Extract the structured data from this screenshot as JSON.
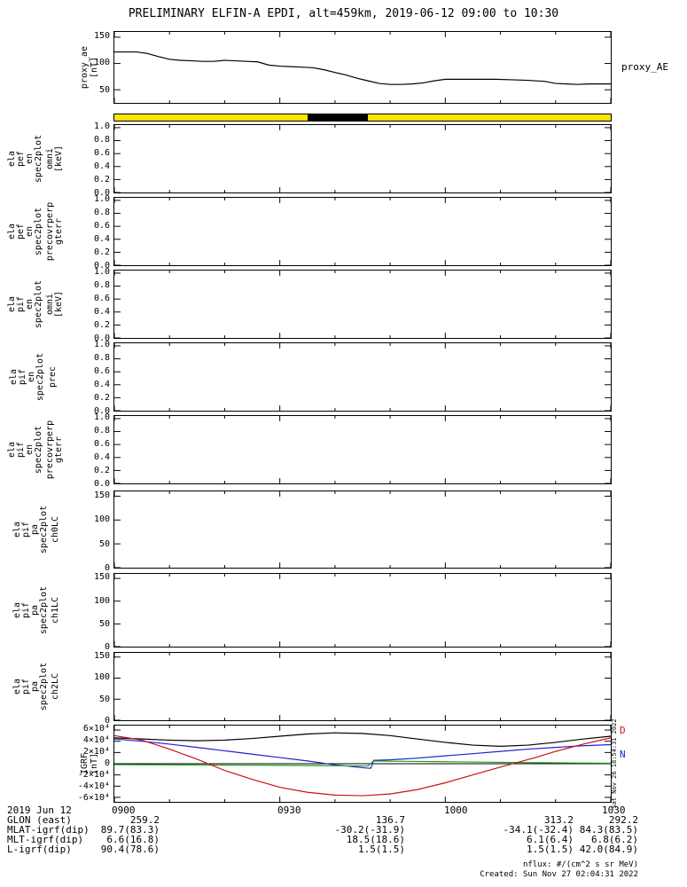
{
  "title": "PRELIMINARY ELFIN-A EPDI, alt=459km, 2019-06-12 09:00 to 10:30",
  "right_labels": {
    "proxy": "proxy_AE",
    "igrf_d": "D",
    "igrf_n": "N"
  },
  "colors": {
    "igrf_d": "#cc1010",
    "igrf_n": "#2020d0",
    "band_yellow": "#ffe400",
    "axis": "#000000"
  },
  "side_timestamp": "Sat Nov 26 18:54:31 2022",
  "status_bar": {
    "band_color": "#ffe400",
    "segment_color": "#000000",
    "segment_start_min": 35,
    "segment_end_min": 46,
    "total_minutes": 90
  },
  "panels": [
    {
      "name": "proxy-ae",
      "chart": "proxy_ae",
      "left_words": [
        "proxy_ae",
        "[nT]"
      ],
      "word_x": [
        96,
        107
      ],
      "ylim": [
        25,
        160
      ],
      "ticks": [
        {
          "v": 150,
          "t": "150"
        },
        {
          "v": 100,
          "t": "100"
        },
        {
          "v": 50,
          "t": "50"
        }
      ]
    },
    {
      "name": "ela-pef-en-omni",
      "left_words": [
        "ela",
        "pef",
        "en",
        "spec2plot",
        "omni",
        "[keV]"
      ],
      "word_x": [
        14,
        24,
        34,
        44,
        57,
        67
      ],
      "ylim": [
        0,
        1.04
      ],
      "ticks": [
        {
          "v": 1.0,
          "t": "1.0"
        },
        {
          "v": 0.8,
          "t": "0.8"
        },
        {
          "v": 0.6,
          "t": "0.6"
        },
        {
          "v": 0.4,
          "t": "0.4"
        },
        {
          "v": 0.2,
          "t": "0.2"
        },
        {
          "v": 0,
          "t": "0.0"
        }
      ]
    },
    {
      "name": "ela-pef-en-precovrperp",
      "left_words": [
        "ela",
        "pef",
        "en",
        "spec2plot",
        "precovrperp",
        "gterr"
      ],
      "word_x": [
        14,
        24,
        34,
        44,
        57,
        67
      ],
      "ylim": [
        0,
        1.04
      ],
      "ticks": [
        {
          "v": 1.0,
          "t": "1.0"
        },
        {
          "v": 0.8,
          "t": "0.8"
        },
        {
          "v": 0.6,
          "t": "0.6"
        },
        {
          "v": 0.4,
          "t": "0.4"
        },
        {
          "v": 0.2,
          "t": "0.2"
        },
        {
          "v": 0,
          "t": "0.0"
        }
      ]
    },
    {
      "name": "ela-pif-en-omni",
      "left_words": [
        "ela",
        "pif",
        "en",
        "spec2plot",
        "omni",
        "[keV]"
      ],
      "word_x": [
        14,
        24,
        34,
        44,
        57,
        67
      ],
      "ylim": [
        0,
        1.04
      ],
      "ticks": [
        {
          "v": 1.0,
          "t": "1.0"
        },
        {
          "v": 0.8,
          "t": "0.8"
        },
        {
          "v": 0.6,
          "t": "0.6"
        },
        {
          "v": 0.4,
          "t": "0.4"
        },
        {
          "v": 0.2,
          "t": "0.2"
        },
        {
          "v": 0,
          "t": "0.0"
        }
      ]
    },
    {
      "name": "ela-pif-en-prec",
      "left_words": [
        "ela",
        "pif",
        "en",
        "spec2plot",
        "prec"
      ],
      "word_x": [
        16,
        26,
        36,
        46,
        60
      ],
      "ylim": [
        0,
        1.04
      ],
      "ticks": [
        {
          "v": 1.0,
          "t": "1.0"
        },
        {
          "v": 0.8,
          "t": "0.8"
        },
        {
          "v": 0.6,
          "t": "0.6"
        },
        {
          "v": 0.4,
          "t": "0.4"
        },
        {
          "v": 0.2,
          "t": "0.2"
        },
        {
          "v": 0,
          "t": "0.0"
        }
      ]
    },
    {
      "name": "ela-pif-en-precovrperp",
      "left_words": [
        "ela",
        "pif",
        "en",
        "spec2plot",
        "precovrperp",
        "gterr"
      ],
      "word_x": [
        14,
        24,
        34,
        44,
        57,
        67
      ],
      "ylim": [
        0,
        1.04
      ],
      "ticks": [
        {
          "v": 1.0,
          "t": "1.0"
        },
        {
          "v": 0.8,
          "t": "0.8"
        },
        {
          "v": 0.6,
          "t": "0.6"
        },
        {
          "v": 0.4,
          "t": "0.4"
        },
        {
          "v": 0.2,
          "t": "0.2"
        },
        {
          "v": 0,
          "t": "0.0"
        }
      ]
    },
    {
      "name": "ela-pif-pa-ch0LC",
      "left_words": [
        "ela",
        "pif",
        "pa",
        "spec2plot",
        "ch0LC"
      ],
      "word_x": [
        20,
        30,
        40,
        50,
        63
      ],
      "ylim": [
        0,
        160
      ],
      "ticks": [
        {
          "v": 150,
          "t": "150"
        },
        {
          "v": 100,
          "t": "100"
        },
        {
          "v": 50,
          "t": "50"
        },
        {
          "v": 0,
          "t": "0"
        }
      ]
    },
    {
      "name": "ela-pif-pa-ch1LC",
      "left_words": [
        "ela",
        "pif",
        "pa",
        "spec2plot",
        "ch1LC"
      ],
      "word_x": [
        20,
        30,
        40,
        50,
        63
      ],
      "ylim": [
        0,
        160
      ],
      "ticks": [
        {
          "v": 150,
          "t": "150"
        },
        {
          "v": 100,
          "t": "100"
        },
        {
          "v": 50,
          "t": "50"
        },
        {
          "v": 0,
          "t": "0"
        }
      ]
    },
    {
      "name": "ela-pif-pa-ch2LC",
      "left_words": [
        "ela",
        "pif",
        "pa",
        "spec2plot",
        "ch2LC"
      ],
      "word_x": [
        20,
        30,
        40,
        50,
        63
      ],
      "ylim": [
        0,
        160
      ],
      "ticks": [
        {
          "v": 150,
          "t": "150"
        },
        {
          "v": 100,
          "t": "100"
        },
        {
          "v": 50,
          "t": "50"
        },
        {
          "v": 0,
          "t": "0"
        }
      ]
    },
    {
      "name": "igrf",
      "chart": "igrf",
      "left_words": [
        "IGRF",
        "[nT]"
      ],
      "word_x": [
        96,
        107
      ],
      "ylim": [
        -68000,
        68000
      ],
      "ticks": [
        {
          "v": 60000,
          "t": "6×10⁴"
        },
        {
          "v": 40000,
          "t": "4×10⁴"
        },
        {
          "v": 20000,
          "t": "2×10⁴"
        },
        {
          "v": 0,
          "t": "0"
        },
        {
          "v": -20000,
          "t": "-2×10⁴"
        },
        {
          "v": -40000,
          "t": "-4×10⁴"
        },
        {
          "v": -60000,
          "t": "-6×10⁴"
        }
      ]
    }
  ],
  "footer": {
    "date": "2019 Jun 12",
    "axis_ticks": [
      "0900",
      "0930",
      "1000",
      "1030"
    ],
    "rows": [
      {
        "label": "GLON (east)",
        "values": [
          "259.2",
          "136.7",
          "313.2",
          "292.2"
        ]
      },
      {
        "label": "MLAT-igrf(dip)",
        "values": [
          "89.7(83.3)",
          "-30.2(-31.9)",
          "-34.1(-32.4)",
          "84.3(83.5)"
        ]
      },
      {
        "label": "MLT-igrf(dip)",
        "values": [
          "6.6(16.8)",
          "18.5(18.6)",
          "6.1(6.4)",
          "6.8(6.2)"
        ]
      },
      {
        "label": "L-igrf(dip)",
        "values": [
          "90.4(78.6)",
          "1.5(1.5)",
          "1.5(1.5)",
          "42.0(84.9)"
        ]
      }
    ],
    "nflux_note": "nflux: #/(cm^2 s sr MeV)",
    "created": "Created: Sun Nov 27 02:04:31 2022"
  },
  "chart_data": [
    {
      "id": "proxy_ae",
      "type": "line",
      "title": "proxy_AE",
      "ylabel": "proxy_ae [nT]",
      "ylim": [
        25,
        160
      ],
      "yticks": [
        50,
        100,
        150
      ],
      "x_ticks": [
        "0900",
        "0930",
        "1000",
        "1030"
      ],
      "x_range_minutes": [
        0,
        90
      ],
      "color": "#000000",
      "x_minutes": [
        0,
        4,
        6,
        8,
        10,
        12,
        14,
        16,
        18,
        20,
        22,
        24,
        26,
        28,
        30,
        32,
        34,
        36,
        38,
        40,
        42,
        44,
        46,
        48,
        50,
        52,
        54,
        56,
        58,
        60,
        63,
        66,
        69,
        72,
        75,
        78,
        80,
        82,
        84,
        86,
        88,
        90
      ],
      "values": [
        122,
        122,
        119,
        113,
        108,
        106,
        105,
        104,
        104,
        106,
        105,
        104,
        103,
        97,
        95,
        94,
        93,
        92,
        88,
        83,
        78,
        72,
        67,
        62,
        60,
        60,
        61,
        63,
        67,
        70,
        70,
        70,
        70,
        69,
        68,
        66,
        62,
        61,
        60,
        61,
        61,
        61
      ]
    },
    {
      "id": "igrf",
      "type": "line",
      "title": "IGRF [nT]",
      "ylim": [
        -68000,
        68000
      ],
      "yticks": [
        -60000,
        -40000,
        -20000,
        0,
        20000,
        40000,
        60000
      ],
      "x_ticks": [
        "0900",
        "0930",
        "1000",
        "1030"
      ],
      "x_range_minutes": [
        0,
        90
      ],
      "series": [
        {
          "name": "black-trace",
          "color": "#000000",
          "x": [
            0,
            5,
            10,
            15,
            20,
            25,
            30,
            35,
            40,
            45,
            50,
            55,
            60,
            65,
            70,
            75,
            80,
            85,
            90
          ],
          "y": [
            46000,
            44000,
            42000,
            41000,
            42000,
            45000,
            49000,
            53000,
            55000,
            54000,
            50000,
            44000,
            38000,
            33000,
            31000,
            33000,
            38000,
            44000,
            49000
          ]
        },
        {
          "name": "N",
          "color": "#2020d0",
          "x": [
            0,
            5,
            10,
            15,
            20,
            25,
            30,
            35,
            40,
            43,
            45,
            46,
            46.5,
            47,
            50,
            55,
            60,
            65,
            70,
            75,
            80,
            85,
            90
          ],
          "y": [
            44000,
            40000,
            35000,
            29000,
            23000,
            17000,
            11000,
            5000,
            -2000,
            -5000,
            -7000,
            -8000,
            -8000,
            6000,
            7000,
            10000,
            14000,
            18000,
            22000,
            26000,
            29000,
            32000,
            34000
          ]
        },
        {
          "name": "green-trace",
          "color": "#18a018",
          "x": [
            0,
            10,
            20,
            30,
            40,
            45,
            46,
            47,
            50,
            55,
            60,
            70,
            80,
            90
          ],
          "y": [
            -1500,
            -2000,
            -2500,
            -3000,
            -3500,
            -4000,
            -4000,
            5000,
            4500,
            4000,
            3500,
            2500,
            1500,
            1000
          ]
        },
        {
          "name": "D",
          "color": "#cc1010",
          "x": [
            0,
            5,
            10,
            15,
            20,
            25,
            30,
            35,
            40,
            45,
            50,
            55,
            60,
            65,
            70,
            73,
            76,
            80,
            85,
            90
          ],
          "y": [
            50000,
            42000,
            26000,
            8000,
            -12000,
            -28000,
            -42000,
            -51000,
            -56000,
            -57000,
            -54000,
            -46000,
            -34000,
            -20000,
            -6000,
            2000,
            10000,
            22000,
            35000,
            46000
          ]
        }
      ]
    }
  ]
}
